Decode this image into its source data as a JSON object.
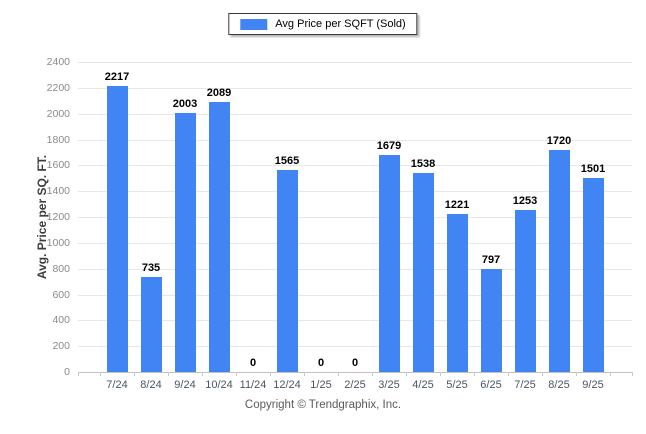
{
  "legend": {
    "label": "Avg Price per SQFT (Sold)"
  },
  "y_axis": {
    "title": "Avg. Price per SQ. FT."
  },
  "footer": {
    "copyright": "Copyright © Trendgraphix, Inc."
  },
  "colors": {
    "bar": "#4184f3",
    "grid_line": "#e8e8e8",
    "axis_line": "#c0c0c0",
    "tick_mark": "#c9c9c9",
    "y_tick_label": "#8a8a8a",
    "x_tick_label": "#4b5563",
    "value_label": "#000000",
    "y_axis_title": "#3d3d3d",
    "legend_border": "#3c3c3c",
    "legend_text": "#000000",
    "footer_text": "#5a5a5a"
  },
  "chart_data": {
    "type": "bar",
    "title": "",
    "series_name": "Avg Price per SQFT (Sold)",
    "categories": [
      "7/24",
      "8/24",
      "9/24",
      "10/24",
      "11/24",
      "12/24",
      "1/25",
      "2/25",
      "3/25",
      "4/25",
      "5/25",
      "6/25",
      "7/25",
      "8/25",
      "9/25"
    ],
    "values": [
      2217,
      735,
      2003,
      2089,
      0,
      1565,
      0,
      0,
      1679,
      1538,
      1221,
      797,
      1253,
      1720,
      1501
    ],
    "xlabel": "",
    "ylabel": "Avg. Price per SQ. FT.",
    "ylim": [
      0,
      2400
    ],
    "ytick_interval": 200,
    "grid": "horizontal",
    "legend_position": "top-center",
    "value_labels": "above-bars"
  }
}
